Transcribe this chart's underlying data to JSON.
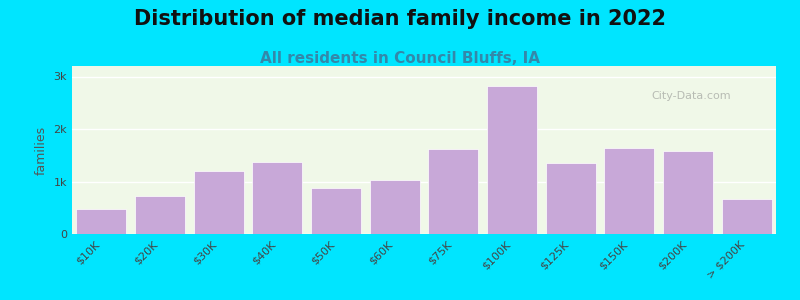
{
  "title": "Distribution of median family income in 2022",
  "subtitle": "All residents in Council Bluffs, IA",
  "categories": [
    "$10K",
    "$20K",
    "$30K",
    "$40K",
    "$50K",
    "$60K",
    "$75K",
    "$100K",
    "$125K",
    "$150K",
    "$200K",
    "> $200K"
  ],
  "values": [
    480,
    730,
    1200,
    1380,
    880,
    1020,
    1620,
    2820,
    1360,
    1640,
    1580,
    660
  ],
  "bar_color": "#c8a8d8",
  "bar_edge_color": "#c8a8d8",
  "background_outer": "#00e5ff",
  "plot_bg_top": "#f0f8e8",
  "plot_bg_bottom": "#ffffff",
  "title_color": "#111111",
  "subtitle_color": "#3388aa",
  "ylabel": "families",
  "yticks": [
    0,
    1000,
    2000,
    3000
  ],
  "ytick_labels": [
    "0",
    "1k",
    "2k",
    "3k"
  ],
  "ylim": [
    0,
    3200
  ],
  "title_fontsize": 15,
  "subtitle_fontsize": 11,
  "watermark": "City-Data.com"
}
